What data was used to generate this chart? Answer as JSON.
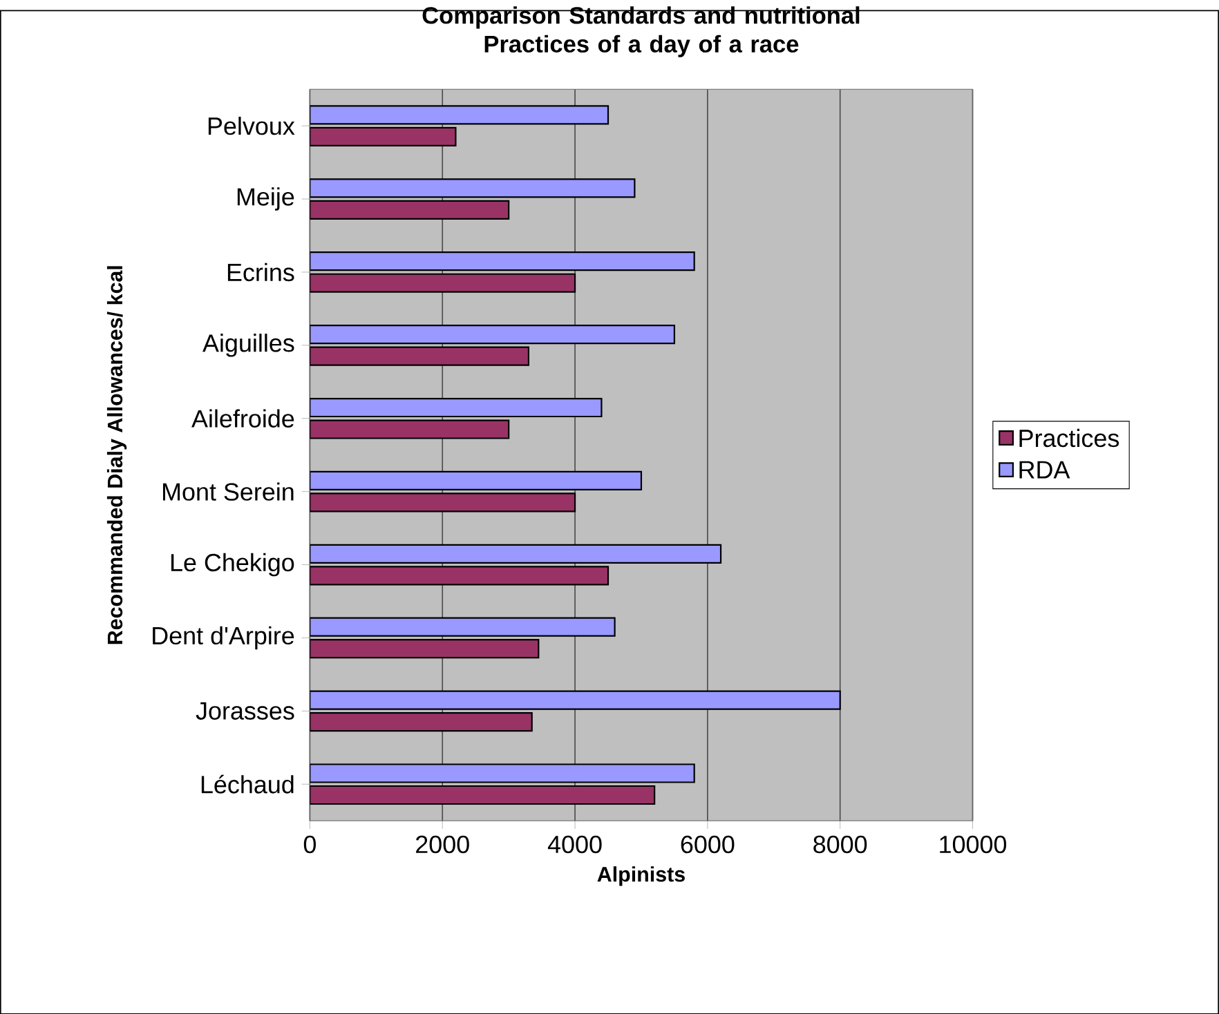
{
  "chart_data": {
    "type": "bar",
    "orientation": "horizontal",
    "title": "Comparison Standards and nutritional Practices of a day of a race",
    "xlabel": "Alpinists",
    "ylabel": "Recommanded Dialy Allowances/ kcal",
    "categories": [
      "Pelvoux",
      "Meije",
      "Ecrins",
      "Aiguilles",
      "Ailefroide",
      "Mont Serein",
      "Le Chekigo",
      "Dent d'Arpire",
      "Jorasses",
      "Léchaud"
    ],
    "series": [
      {
        "name": "Practices",
        "color": "#993366",
        "values": [
          2200,
          3000,
          4000,
          3300,
          3000,
          4000,
          4500,
          3450,
          3350,
          5200
        ]
      },
      {
        "name": "RDA",
        "color": "#9999ff",
        "values": [
          4500,
          4900,
          5800,
          5500,
          4400,
          5000,
          6200,
          4600,
          8000,
          5800
        ]
      }
    ],
    "xlim": [
      0,
      10000
    ],
    "xticks": [
      0,
      2000,
      4000,
      6000,
      8000,
      10000
    ],
    "grid": "x",
    "legend": "right"
  }
}
